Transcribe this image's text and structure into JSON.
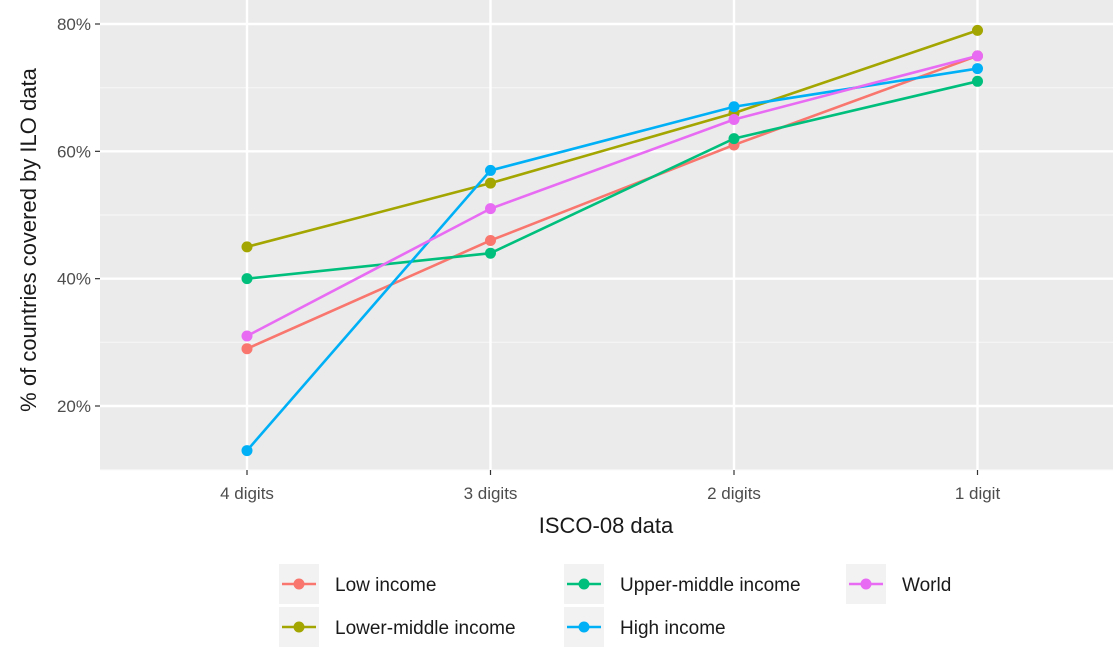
{
  "chart_data": {
    "type": "line",
    "title": "",
    "xlabel": "ISCO-08 data",
    "ylabel": "% of countries covered by ILO data",
    "categories": [
      "4 digits",
      "3 digits",
      "2 digits",
      "1 digit"
    ],
    "y_ticks": [
      {
        "value": 20,
        "label": "20%"
      },
      {
        "value": 40,
        "label": "40%"
      },
      {
        "value": 60,
        "label": "60%"
      },
      {
        "value": 80,
        "label": "80%"
      }
    ],
    "ylim": [
      10,
      80.5
    ],
    "grid": true,
    "legend_position": "bottom",
    "series": [
      {
        "name": "Low income",
        "color": "#F8766D",
        "values": [
          29,
          46,
          61,
          75
        ]
      },
      {
        "name": "Lower-middle income",
        "color": "#A3A500",
        "values": [
          45,
          55,
          66,
          79
        ]
      },
      {
        "name": "Upper-middle income",
        "color": "#00BF7D",
        "values": [
          40,
          44,
          62,
          71
        ]
      },
      {
        "name": "High income",
        "color": "#00B0F6",
        "values": [
          13,
          57,
          67,
          73
        ]
      },
      {
        "name": "World",
        "color": "#E76BF3",
        "values": [
          31,
          51,
          65,
          75
        ]
      }
    ]
  }
}
